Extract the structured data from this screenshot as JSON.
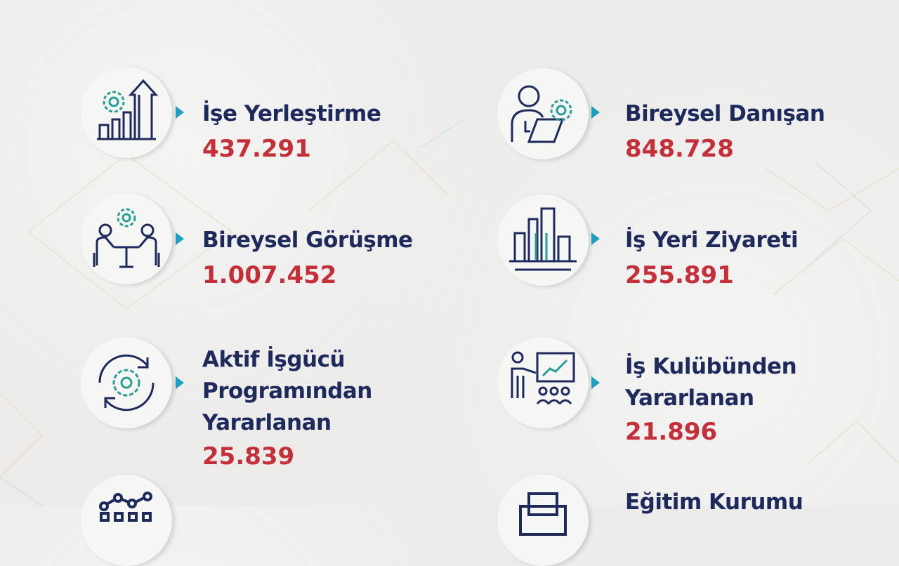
{
  "colors": {
    "title": "#1e2a5c",
    "value": "#c4303a",
    "accent": "#1f9fbf",
    "icon_gear": "#2a9d96",
    "background": "#ecebea"
  },
  "items": [
    {
      "label": "İşe Yerleştirme",
      "value": "437.291",
      "icon": "growth-chart-gear-icon"
    },
    {
      "label": "Bireysel Danışan",
      "value": "848.728",
      "icon": "person-laptop-gear-icon"
    },
    {
      "label": "Bireysel Görüşme",
      "value": "1.007.452",
      "icon": "meeting-table-gear-icon"
    },
    {
      "label": "İş Yeri Ziyareti",
      "value": "255.891",
      "icon": "buildings-icon"
    },
    {
      "label_lines": [
        "Aktif İşgücü",
        "Programından",
        "Yararlanan"
      ],
      "value": "25.839",
      "icon": "cycle-gear-icon"
    },
    {
      "label_lines": [
        "İş Kulübünden",
        "Yararlanan"
      ],
      "value": "21.896",
      "icon": "presentation-audience-icon"
    },
    {
      "label": "Eğitim Kurumu",
      "icon": "printer-icon"
    },
    {
      "icon": "network-nodes-icon"
    }
  ]
}
